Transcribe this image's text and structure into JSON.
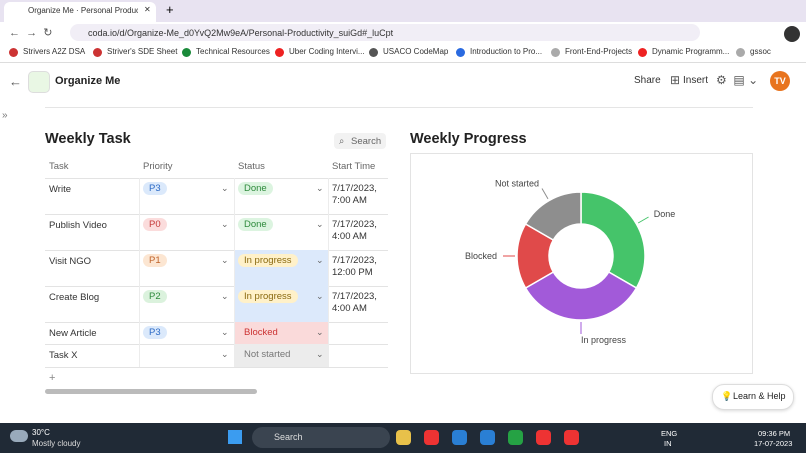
{
  "browser": {
    "tab_title": "Organize Me · Personal Productio",
    "url": "coda.io/d/Organize-Me_d0YvQ2Mw9eA/Personal-Productivity_suiGd#_luCpt",
    "bookmarks": [
      "Strivers A2Z DSA",
      "Striver's SDE Sheet",
      "Technical Resources",
      "Uber Coding Intervi...",
      "USACO CodeMap",
      "Introduction to Pro...",
      "Front-End-Projects",
      "Dynamic Programm...",
      "gssoc"
    ]
  },
  "header": {
    "doc_title": "Organize Me",
    "share": "Share",
    "insert": "Insert",
    "avatar": "TV"
  },
  "table": {
    "title": "Weekly Task",
    "search": "Search",
    "columns": [
      "Task",
      "Priority",
      "Status",
      "Start Time"
    ],
    "rows": [
      [
        "Write",
        "P3",
        "Done",
        "7/17/2023, 7:00 AM"
      ],
      [
        "Publish Video",
        "P0",
        "Done",
        "7/17/2023, 4:00 AM"
      ],
      [
        "Visit NGO",
        "P1",
        "In progress",
        "7/17/2023, 12:00 PM"
      ],
      [
        "Create Blog",
        "P2",
        "In progress",
        "7/17/2023, 4:00 AM"
      ],
      [
        "New Article",
        "P3",
        "Blocked",
        null
      ],
      [
        "Task X",
        null,
        "Not started",
        null
      ]
    ]
  },
  "chart_data": {
    "type": "pie",
    "title": "Weekly Progress",
    "categories": [
      "Done",
      "In progress",
      "Blocked",
      "Not started"
    ],
    "values": [
      2,
      2,
      1,
      1
    ],
    "colors": [
      "#45c46a",
      "#a25ad9",
      "#e04a4a",
      "#8e8e8e"
    ]
  },
  "help": "Learn & Help",
  "taskbar": {
    "temperature": "30°C",
    "weather": "Mostly cloudy",
    "search": "Search",
    "lang": "ENG",
    "region": "IN",
    "time": "09:36 PM",
    "date": "17-07-2023"
  }
}
